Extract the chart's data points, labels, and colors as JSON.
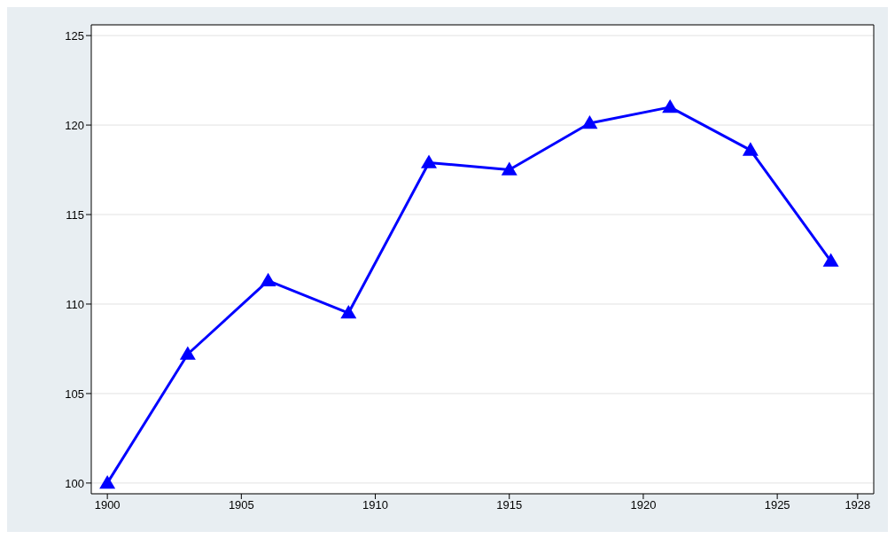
{
  "chart_data": {
    "type": "line",
    "x": [
      1900,
      1903,
      1906,
      1909,
      1912,
      1915,
      1918,
      1921,
      1924,
      1927
    ],
    "series": [
      {
        "color": "#0000ff",
        "values": [
          100,
          107.2,
          111.3,
          109.5,
          117.9,
          117.5,
          120.1,
          121.0,
          118.6,
          112.4
        ]
      }
    ],
    "xlim": [
      1899.4,
      1928.6
    ],
    "xticks": [
      1900,
      1905,
      1910,
      1915,
      1920,
      1925,
      1928
    ],
    "ylim": [
      99.4,
      125.6
    ],
    "yticks": [
      100,
      105,
      110,
      115,
      120,
      125
    ],
    "grid": "y",
    "marker": "triangle",
    "line_style": "solid"
  }
}
